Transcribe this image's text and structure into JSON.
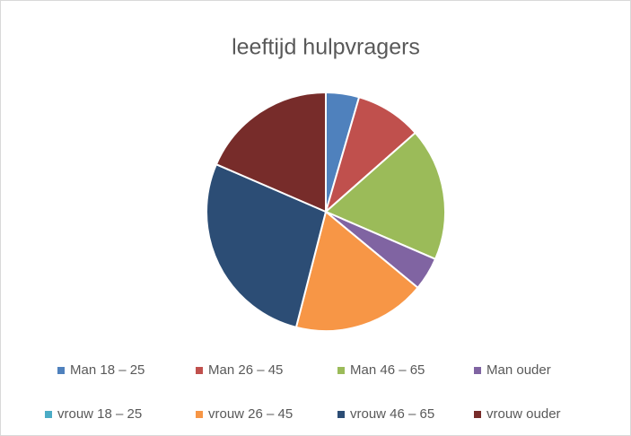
{
  "chart_data": {
    "type": "pie",
    "title": "leeftijd hulpvragers",
    "categories": [
      "Man 18 – 25",
      "Man 26 – 45",
      "Man 46 – 65",
      "Man ouder",
      "vrouw 18 – 25",
      "vrouw 26 – 45",
      "vrouw 46 – 65",
      "vrouw ouder"
    ],
    "values": [
      4.5,
      9,
      18,
      4.5,
      0,
      18,
      27.5,
      18.5
    ],
    "colors": [
      "#4f81bd",
      "#c0504d",
      "#9bbb59",
      "#8064a2",
      "#4bacc6",
      "#f79646",
      "#2c4d75",
      "#772c2a"
    ],
    "legend": "bottom"
  }
}
